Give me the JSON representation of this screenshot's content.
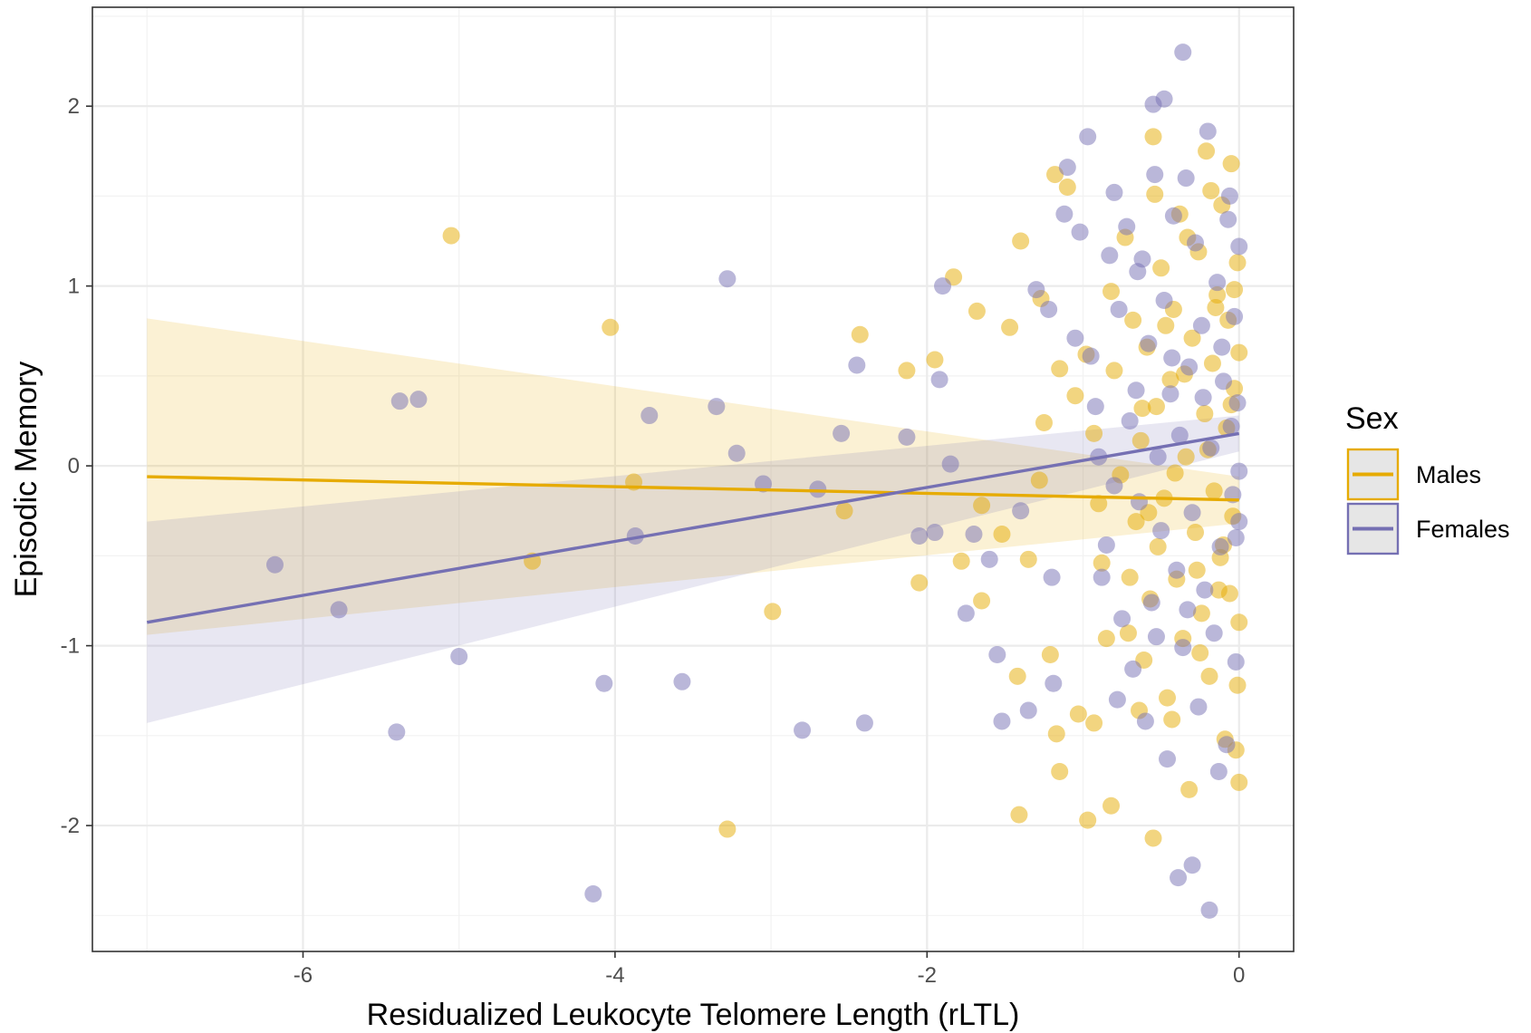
{
  "chart_data": {
    "type": "scatter",
    "xlabel": "Residualized Leukocyte Telomere Length (rLTL)",
    "ylabel": "Episodic Memory",
    "xlim": [
      -7.35,
      0.35
    ],
    "ylim": [
      -2.7,
      2.55
    ],
    "xticks": [
      -6,
      -4,
      -2,
      0
    ],
    "xtick_labels": [
      "-6",
      "-4",
      "-2",
      "0"
    ],
    "yticks": [
      -2,
      -1,
      0,
      1,
      2
    ],
    "ytick_labels": [
      "-2",
      "-1",
      "0",
      "1",
      "2"
    ],
    "grid": true,
    "legend": {
      "title": "Sex",
      "position": "right"
    },
    "series": [
      {
        "name": "Males",
        "color": "#E6AB02",
        "fit": {
          "x0": -7.0,
          "y0": -0.06,
          "x1": 0.0,
          "y1": -0.19
        },
        "ci": {
          "lower0": -0.94,
          "upper0": 0.82,
          "lower1": -0.32,
          "upper1": -0.06
        },
        "points": [
          [
            -5.05,
            1.28
          ],
          [
            -4.03,
            0.77
          ],
          [
            -2.43,
            0.73
          ],
          [
            -2.13,
            0.53
          ],
          [
            -1.95,
            0.59
          ],
          [
            -1.83,
            1.05
          ],
          [
            -1.68,
            0.86
          ],
          [
            -1.4,
            1.25
          ],
          [
            -1.27,
            0.93
          ],
          [
            -1.18,
            1.62
          ],
          [
            -1.1,
            1.55
          ],
          [
            -1.47,
            0.77
          ],
          [
            -3.88,
            -0.09
          ],
          [
            -2.53,
            -0.25
          ],
          [
            -4.53,
            -0.53
          ],
          [
            -2.99,
            -0.81
          ],
          [
            -2.05,
            -0.65
          ],
          [
            -1.78,
            -0.53
          ],
          [
            -1.65,
            -0.75
          ],
          [
            -1.42,
            -1.17
          ],
          [
            -1.21,
            -1.05
          ],
          [
            -1.17,
            -1.49
          ],
          [
            -1.15,
            -1.7
          ],
          [
            -1.03,
            -1.38
          ],
          [
            -0.93,
            -1.43
          ],
          [
            -3.28,
            -2.02
          ],
          [
            -1.41,
            -1.94
          ],
          [
            -0.97,
            -1.97
          ],
          [
            -0.82,
            -1.89
          ],
          [
            -0.55,
            -2.07
          ],
          [
            -1.65,
            -0.22
          ],
          [
            -1.52,
            -0.38
          ],
          [
            -1.35,
            -0.52
          ],
          [
            -1.28,
            -0.08
          ],
          [
            -1.25,
            0.24
          ],
          [
            -1.15,
            0.54
          ],
          [
            -1.05,
            0.39
          ],
          [
            -0.98,
            0.62
          ],
          [
            -0.93,
            0.18
          ],
          [
            -0.9,
            -0.21
          ],
          [
            -0.88,
            -0.54
          ],
          [
            -0.85,
            -0.96
          ],
          [
            -0.82,
            0.97
          ],
          [
            -0.8,
            0.53
          ],
          [
            -0.76,
            -0.05
          ],
          [
            -0.73,
            1.27
          ],
          [
            -0.7,
            -0.62
          ],
          [
            -0.68,
            0.81
          ],
          [
            -0.66,
            -0.31
          ],
          [
            -0.63,
            0.14
          ],
          [
            -0.61,
            -1.08
          ],
          [
            -0.59,
            0.66
          ],
          [
            -0.57,
            -0.74
          ],
          [
            -0.55,
            1.83
          ],
          [
            -0.53,
            0.33
          ],
          [
            -0.52,
            -0.45
          ],
          [
            -0.5,
            1.1
          ],
          [
            -0.48,
            -0.18
          ],
          [
            -0.46,
            -1.29
          ],
          [
            -0.44,
            0.48
          ],
          [
            -0.42,
            0.87
          ],
          [
            -0.4,
            -0.63
          ],
          [
            -0.38,
            1.4
          ],
          [
            -0.36,
            -0.96
          ],
          [
            -0.34,
            0.05
          ],
          [
            -0.32,
            -1.8
          ],
          [
            -0.3,
            0.71
          ],
          [
            -0.28,
            -0.37
          ],
          [
            -0.26,
            1.19
          ],
          [
            -0.24,
            -0.82
          ],
          [
            -0.22,
            0.29
          ],
          [
            -0.21,
            1.75
          ],
          [
            -0.19,
            -1.17
          ],
          [
            -0.17,
            0.57
          ],
          [
            -0.16,
            -0.14
          ],
          [
            -0.14,
            0.95
          ],
          [
            -0.12,
            -0.51
          ],
          [
            -0.11,
            1.45
          ],
          [
            -0.09,
            -1.52
          ],
          [
            -0.08,
            0.21
          ],
          [
            -0.07,
            0.81
          ],
          [
            -0.06,
            -0.71
          ],
          [
            -0.05,
            1.68
          ],
          [
            -0.04,
            -0.28
          ],
          [
            -0.03,
            0.43
          ],
          [
            -0.02,
            -1.58
          ],
          [
            -0.01,
            1.13
          ],
          [
            0.0,
            -0.87
          ],
          [
            0.0,
            0.63
          ],
          [
            0.0,
            -1.76
          ],
          [
            -0.62,
            0.32
          ],
          [
            -0.58,
            -0.26
          ],
          [
            -0.47,
            0.78
          ],
          [
            -0.41,
            -0.04
          ],
          [
            -0.35,
            0.51
          ],
          [
            -0.27,
            -0.58
          ],
          [
            -0.2,
            0.09
          ],
          [
            -0.15,
            0.88
          ],
          [
            -0.1,
            -0.44
          ],
          [
            -0.05,
            0.34
          ],
          [
            -0.71,
            -0.93
          ],
          [
            -0.64,
            -1.36
          ],
          [
            -0.54,
            1.51
          ],
          [
            -0.43,
            -1.41
          ],
          [
            -0.33,
            1.27
          ],
          [
            -0.25,
            -1.04
          ],
          [
            -0.18,
            1.53
          ],
          [
            -0.13,
            -0.69
          ],
          [
            -0.03,
            0.98
          ],
          [
            -0.01,
            -1.22
          ]
        ]
      },
      {
        "name": "Females",
        "color": "#7570B3",
        "fit": {
          "x0": -7.0,
          "y0": -0.87,
          "x1": 0.0,
          "y1": 0.18
        },
        "ci": {
          "lower0": -1.43,
          "upper0": -0.31,
          "lower1": 0.08,
          "upper1": 0.28
        },
        "points": [
          [
            -3.28,
            1.04
          ],
          [
            -1.9,
            1.0
          ],
          [
            -2.45,
            0.56
          ],
          [
            -3.35,
            0.33
          ],
          [
            -5.38,
            0.36
          ],
          [
            -5.26,
            0.37
          ],
          [
            -3.78,
            0.28
          ],
          [
            -3.22,
            0.07
          ],
          [
            -2.55,
            0.18
          ],
          [
            -2.13,
            0.16
          ],
          [
            -1.92,
            0.48
          ],
          [
            -1.85,
            0.01
          ],
          [
            -6.18,
            -0.55
          ],
          [
            -5.77,
            -0.8
          ],
          [
            -5.0,
            -1.06
          ],
          [
            -5.4,
            -1.48
          ],
          [
            -4.07,
            -1.21
          ],
          [
            -3.57,
            -1.2
          ],
          [
            -2.8,
            -1.47
          ],
          [
            -2.4,
            -1.43
          ],
          [
            -4.14,
            -2.38
          ],
          [
            -3.05,
            -0.1
          ],
          [
            -2.7,
            -0.13
          ],
          [
            -3.87,
            -0.39
          ],
          [
            -2.05,
            -0.39
          ],
          [
            -1.95,
            -0.37
          ],
          [
            -1.75,
            -0.82
          ],
          [
            -1.7,
            -0.38
          ],
          [
            -1.6,
            -0.52
          ],
          [
            -1.55,
            -1.05
          ],
          [
            -1.52,
            -1.42
          ],
          [
            -1.4,
            -0.25
          ],
          [
            -1.35,
            -1.36
          ],
          [
            -1.2,
            -0.62
          ],
          [
            -1.19,
            -1.21
          ],
          [
            -0.39,
            -2.29
          ],
          [
            -0.36,
            2.3
          ],
          [
            -0.3,
            -2.22
          ],
          [
            -0.19,
            -2.47
          ],
          [
            -0.48,
            2.04
          ],
          [
            -0.55,
            2.01
          ],
          [
            -0.97,
            1.83
          ],
          [
            -1.1,
            1.66
          ],
          [
            -0.8,
            1.52
          ],
          [
            -1.3,
            0.98
          ],
          [
            -1.22,
            0.87
          ],
          [
            -1.12,
            1.4
          ],
          [
            -1.05,
            0.71
          ],
          [
            -0.95,
            0.61
          ],
          [
            -0.92,
            0.33
          ],
          [
            -0.88,
            -0.62
          ],
          [
            -0.85,
            -0.44
          ],
          [
            -0.83,
            1.17
          ],
          [
            -0.8,
            -0.11
          ],
          [
            -0.77,
            0.87
          ],
          [
            -0.75,
            -0.85
          ],
          [
            -0.72,
            1.33
          ],
          [
            -0.7,
            0.25
          ],
          [
            -0.68,
            -1.13
          ],
          [
            -0.66,
            0.42
          ],
          [
            -0.64,
            -0.2
          ],
          [
            -0.62,
            1.15
          ],
          [
            -0.6,
            -1.42
          ],
          [
            -0.58,
            0.68
          ],
          [
            -0.56,
            -0.76
          ],
          [
            -0.54,
            1.62
          ],
          [
            -0.52,
            0.05
          ],
          [
            -0.5,
            -0.36
          ],
          [
            -0.48,
            0.92
          ],
          [
            -0.46,
            -1.63
          ],
          [
            -0.44,
            0.4
          ],
          [
            -0.42,
            1.39
          ],
          [
            -0.4,
            -0.58
          ],
          [
            -0.38,
            0.17
          ],
          [
            -0.36,
            -1.01
          ],
          [
            -0.34,
            1.6
          ],
          [
            -0.32,
            0.55
          ],
          [
            -0.3,
            -0.26
          ],
          [
            -0.28,
            1.24
          ],
          [
            -0.26,
            -1.34
          ],
          [
            -0.24,
            0.78
          ],
          [
            -0.22,
            -0.69
          ],
          [
            -0.2,
            1.86
          ],
          [
            -0.18,
            0.1
          ],
          [
            -0.16,
            -0.93
          ],
          [
            -0.14,
            1.02
          ],
          [
            -0.12,
            -0.45
          ],
          [
            -0.1,
            0.47
          ],
          [
            -0.08,
            -1.55
          ],
          [
            -0.06,
            1.5
          ],
          [
            -0.05,
            0.22
          ],
          [
            -0.04,
            -0.16
          ],
          [
            -0.03,
            0.83
          ],
          [
            -0.02,
            -1.09
          ],
          [
            -0.01,
            0.35
          ],
          [
            0.0,
            -0.31
          ],
          [
            0.0,
            1.22
          ],
          [
            0.0,
            -0.03
          ],
          [
            -1.02,
            1.3
          ],
          [
            -0.9,
            0.05
          ],
          [
            -0.78,
            -1.3
          ],
          [
            -0.65,
            1.08
          ],
          [
            -0.53,
            -0.95
          ],
          [
            -0.43,
            0.6
          ],
          [
            -0.33,
            -0.8
          ],
          [
            -0.23,
            0.38
          ],
          [
            -0.13,
            -1.7
          ],
          [
            -0.07,
            1.37
          ],
          [
            -0.02,
            -0.4
          ],
          [
            -0.11,
            0.66
          ]
        ]
      }
    ]
  }
}
